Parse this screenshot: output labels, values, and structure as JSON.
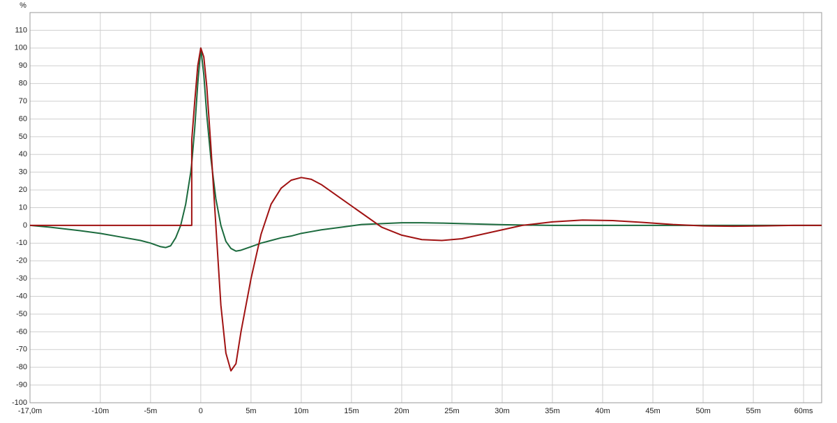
{
  "chart_data": {
    "type": "line",
    "y_label": "%",
    "x": [
      -17,
      -15,
      -12,
      -10,
      -8,
      -6,
      -5,
      -4,
      -3.5,
      -3,
      -2.5,
      -2,
      -1.5,
      -1,
      -0.9,
      -0.9,
      -0.6,
      -0.3,
      0,
      0.3,
      0.6,
      1,
      1.5,
      2,
      2.5,
      3,
      3.5,
      4,
      5,
      6,
      7,
      8,
      9,
      10,
      11,
      12,
      14,
      16,
      18,
      20,
      22,
      24,
      26,
      28,
      30,
      32,
      35,
      38,
      41,
      44,
      47,
      50,
      53,
      56,
      59,
      61.8
    ],
    "series": [
      {
        "name": "Green",
        "color": "#1b6a3d",
        "values": [
          0,
          -1,
          -3,
          -4.5,
          -6.5,
          -8.5,
          -10,
          -12,
          -12.5,
          -11.5,
          -7,
          0,
          12,
          30,
          35,
          35,
          55,
          80,
          100,
          85,
          62,
          38,
          15,
          0,
          -9,
          -13,
          -14.5,
          -14,
          -12,
          -10,
          -8.5,
          -7,
          -6,
          -4.5,
          -3.5,
          -2.5,
          -1,
          0.5,
          1,
          1.5,
          1.5,
          1.3,
          1,
          0.7,
          0.4,
          0.2,
          0,
          0,
          0,
          0,
          0,
          0,
          0,
          0,
          0,
          0
        ]
      },
      {
        "name": "Red",
        "color": "#a01212",
        "values": [
          0,
          0,
          0,
          0,
          0,
          0,
          0,
          0,
          0,
          0,
          0,
          0,
          0,
          0,
          0,
          48,
          70,
          90,
          100,
          95,
          78,
          45,
          0,
          -45,
          -72,
          -82,
          -78,
          -60,
          -30,
          -5,
          12,
          21,
          25.5,
          27,
          26,
          23,
          15,
          7,
          -1,
          -5.5,
          -8,
          -8.5,
          -7.5,
          -5,
          -2.5,
          0,
          2,
          3,
          2.7,
          1.7,
          0.5,
          -0.3,
          -0.5,
          -0.3,
          0,
          0
        ]
      }
    ],
    "xlim": [
      -17,
      61.8
    ],
    "ylim": [
      -100,
      120
    ],
    "xticks": [
      {
        "value": -17,
        "label": "-17,0m"
      },
      {
        "value": -10,
        "label": "-10m"
      },
      {
        "value": -5,
        "label": "-5m"
      },
      0,
      {
        "value": 5,
        "label": "5m"
      },
      {
        "value": 10,
        "label": "10m"
      },
      {
        "value": 15,
        "label": "15m"
      },
      {
        "value": 20,
        "label": "20m"
      },
      {
        "value": 25,
        "label": "25m"
      },
      {
        "value": 30,
        "label": "30m"
      },
      {
        "value": 35,
        "label": "35m"
      },
      {
        "value": 40,
        "label": "40m"
      },
      {
        "value": 45,
        "label": "45m"
      },
      {
        "value": 50,
        "label": "50m"
      },
      {
        "value": 55,
        "label": "55m"
      },
      {
        "value": 60,
        "label": "60ms"
      }
    ],
    "yticks": [
      -100,
      -90,
      -80,
      -70,
      -60,
      -50,
      -40,
      -30,
      -20,
      -10,
      0,
      10,
      20,
      30,
      40,
      50,
      60,
      70,
      80,
      90,
      100,
      110
    ],
    "grid": true
  }
}
